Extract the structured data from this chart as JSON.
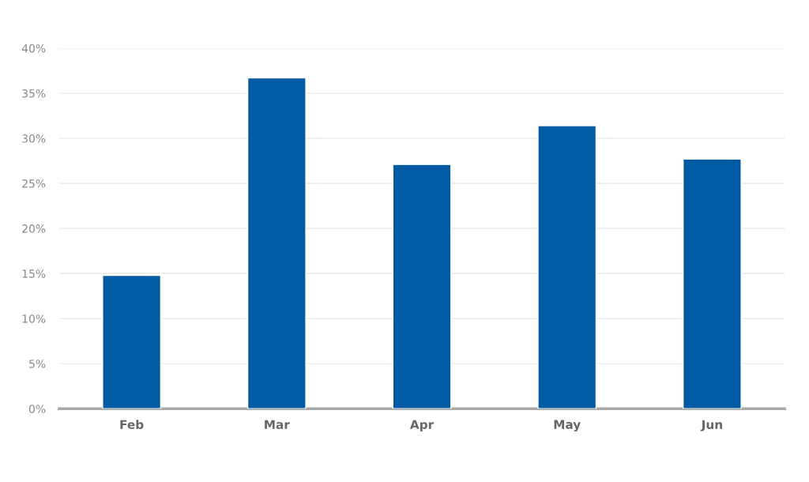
{
  "chart_data": {
    "type": "bar",
    "categories": [
      "Feb",
      "Mar",
      "Apr",
      "May",
      "Jun"
    ],
    "values": [
      14.8,
      36.7,
      27.1,
      31.4,
      27.7
    ],
    "color": "#005ba4",
    "ylim": [
      0,
      40
    ],
    "yticks": [
      {
        "value": 0,
        "label": "0%"
      },
      {
        "value": 5,
        "label": "5%"
      },
      {
        "value": 10,
        "label": "10%"
      },
      {
        "value": 15,
        "label": "15%"
      },
      {
        "value": 20,
        "label": "20%"
      },
      {
        "value": 25,
        "label": "25%"
      },
      {
        "value": 30,
        "label": "30%"
      },
      {
        "value": 35,
        "label": "35%"
      },
      {
        "value": 40,
        "label": "40%"
      }
    ],
    "grid": "y"
  }
}
